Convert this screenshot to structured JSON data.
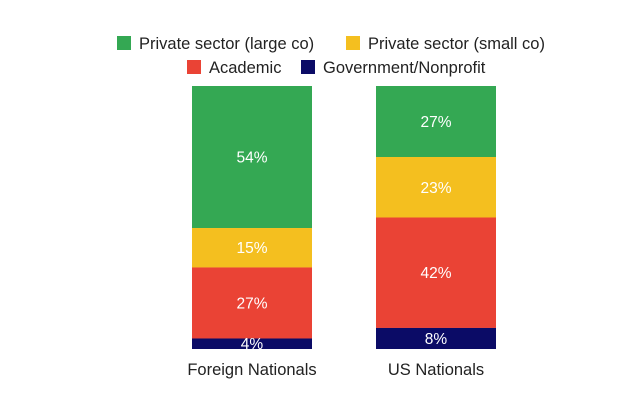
{
  "chart_data": {
    "type": "bar",
    "stacked": true,
    "categories": [
      "Foreign Nationals",
      "US Nationals"
    ],
    "series": [
      {
        "name": "Private sector (large co)",
        "color": "#34a853",
        "values": [
          54,
          27
        ]
      },
      {
        "name": "Private sector (small co)",
        "color": "#f4bf1f",
        "values": [
          15,
          23
        ]
      },
      {
        "name": "Academic",
        "color": "#ea4335",
        "values": [
          27,
          42
        ]
      },
      {
        "name": "Government/Nonprofit",
        "color": "#0b0b66",
        "values": [
          4,
          8
        ]
      }
    ],
    "data_labels": [
      [
        "54%",
        "27%"
      ],
      [
        "15%",
        "23%"
      ],
      [
        "27%",
        "42%"
      ],
      [
        "4%",
        "8%"
      ]
    ],
    "title": "",
    "xlabel": "",
    "ylabel": "",
    "ylim": [
      0,
      100
    ],
    "grid": false,
    "legend_position": "top"
  }
}
